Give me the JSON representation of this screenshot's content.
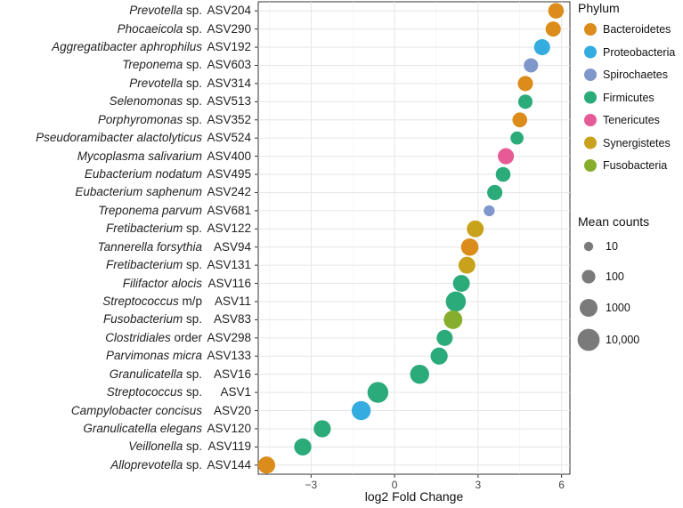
{
  "chart_data": {
    "type": "scatter",
    "xlabel": "log2 Fold Change",
    "xlim": [
      -4.9,
      6.3
    ],
    "xticks": [
      -3,
      0,
      3,
      6
    ],
    "xtick_labels": [
      "−3",
      "0",
      "3",
      "6"
    ],
    "grid": true,
    "legend_color_title": "Phylum",
    "legend_size_title": "Mean counts",
    "phyla": [
      {
        "name": "Bacteroidetes",
        "color": "#DB8C1A"
      },
      {
        "name": "Proteobacteria",
        "color": "#35ACE0"
      },
      {
        "name": "Spirochaetes",
        "color": "#7F97CB"
      },
      {
        "name": "Firmicutes",
        "color": "#2BAB7A"
      },
      {
        "name": "Tenericutes",
        "color": "#E65A96"
      },
      {
        "name": "Synergistetes",
        "color": "#C9A21C"
      },
      {
        "name": "Fusobacteria",
        "color": "#86AE2C"
      }
    ],
    "size_legend": [
      {
        "label": "10",
        "count": 10
      },
      {
        "label": "100",
        "count": 100
      },
      {
        "label": "1000",
        "count": 1000
      },
      {
        "label": "10,000",
        "count": 10000
      }
    ],
    "points": [
      {
        "genus": "Prevotella",
        "suffix": "sp.",
        "asv": "ASV204",
        "lfc": 5.8,
        "phylum": "Bacteroidetes",
        "count": 300
      },
      {
        "genus": "Phocaeicola",
        "suffix": "sp.",
        "asv": "ASV290",
        "lfc": 5.7,
        "phylum": "Bacteroidetes",
        "count": 250
      },
      {
        "genus": "Aggregatibacter aphrophilus",
        "suffix": "",
        "asv": "ASV192",
        "lfc": 5.3,
        "phylum": "Proteobacteria",
        "count": 400
      },
      {
        "genus": "Treponema",
        "suffix": "sp.",
        "asv": "ASV603",
        "lfc": 4.9,
        "phylum": "Spirochaetes",
        "count": 150
      },
      {
        "genus": "Prevotella",
        "suffix": "sp.",
        "asv": "ASV314",
        "lfc": 4.7,
        "phylum": "Bacteroidetes",
        "count": 250
      },
      {
        "genus": "Selenomonas",
        "suffix": "sp.",
        "asv": "ASV513",
        "lfc": 4.7,
        "phylum": "Firmicutes",
        "count": 150
      },
      {
        "genus": "Porphyromonas",
        "suffix": "sp.",
        "asv": "ASV352",
        "lfc": 4.5,
        "phylum": "Bacteroidetes",
        "count": 200
      },
      {
        "genus": "Pseudoramibacter alactolyticus",
        "suffix": "",
        "asv": "ASV524",
        "lfc": 4.4,
        "phylum": "Firmicutes",
        "count": 80
      },
      {
        "genus": "Mycoplasma salivarium",
        "suffix": "",
        "asv": "ASV400",
        "lfc": 4.0,
        "phylum": "Tenericutes",
        "count": 400
      },
      {
        "genus": "Eubacterium nodatum",
        "suffix": "",
        "asv": "ASV495",
        "lfc": 3.9,
        "phylum": "Firmicutes",
        "count": 200
      },
      {
        "genus": "Eubacterium saphenum",
        "suffix": "",
        "asv": "ASV242",
        "lfc": 3.6,
        "phylum": "Firmicutes",
        "count": 250
      },
      {
        "genus": "Treponema parvum",
        "suffix": "",
        "asv": "ASV681",
        "lfc": 3.4,
        "phylum": "Spirochaetes",
        "count": 25
      },
      {
        "genus": "Fretibacterium",
        "suffix": "sp.",
        "asv": "ASV122",
        "lfc": 2.9,
        "phylum": "Synergistetes",
        "count": 600
      },
      {
        "genus": "Tannerella forsythia",
        "suffix": "",
        "asv": "ASV94",
        "lfc": 2.7,
        "phylum": "Bacteroidetes",
        "count": 800
      },
      {
        "genus": "Fretibacterium",
        "suffix": "sp.",
        "asv": "ASV131",
        "lfc": 2.6,
        "phylum": "Synergistetes",
        "count": 600
      },
      {
        "genus": "Filifactor alocis",
        "suffix": "",
        "asv": "ASV116",
        "lfc": 2.4,
        "phylum": "Firmicutes",
        "count": 600
      },
      {
        "genus": "Streptococcus",
        "suffix": "m/p",
        "asv": "ASV11",
        "lfc": 2.2,
        "phylum": "Firmicutes",
        "count": 3500
      },
      {
        "genus": "Fusobacterium",
        "suffix": "sp.",
        "asv": "ASV83",
        "lfc": 2.1,
        "phylum": "Fusobacteria",
        "count": 1500
      },
      {
        "genus": "Clostridiales",
        "suffix": "order",
        "asv": "ASV298",
        "lfc": 1.8,
        "phylum": "Firmicutes",
        "count": 400
      },
      {
        "genus": "Parvimonas micra",
        "suffix": "",
        "asv": "ASV133",
        "lfc": 1.6,
        "phylum": "Firmicutes",
        "count": 700
      },
      {
        "genus": "Granulicatella",
        "suffix": "sp.",
        "asv": "ASV16",
        "lfc": 0.9,
        "phylum": "Firmicutes",
        "count": 2000
      },
      {
        "genus": "Streptococcus",
        "suffix": "sp.",
        "asv": "ASV1",
        "lfc": -0.6,
        "phylum": "Firmicutes",
        "count": 5000
      },
      {
        "genus": "Campylobacter concisus",
        "suffix": "",
        "asv": "ASV20",
        "lfc": -1.2,
        "phylum": "Proteobacteria",
        "count": 2000
      },
      {
        "genus": "Granulicatella elegans",
        "suffix": "",
        "asv": "ASV120",
        "lfc": -2.6,
        "phylum": "Firmicutes",
        "count": 700
      },
      {
        "genus": "Veillonella",
        "suffix": "sp.",
        "asv": "ASV119",
        "lfc": -3.3,
        "phylum": "Firmicutes",
        "count": 700
      },
      {
        "genus": "Alloprevotella",
        "suffix": "sp.",
        "asv": "ASV144",
        "lfc": -4.6,
        "phylum": "Bacteroidetes",
        "count": 700
      }
    ]
  }
}
